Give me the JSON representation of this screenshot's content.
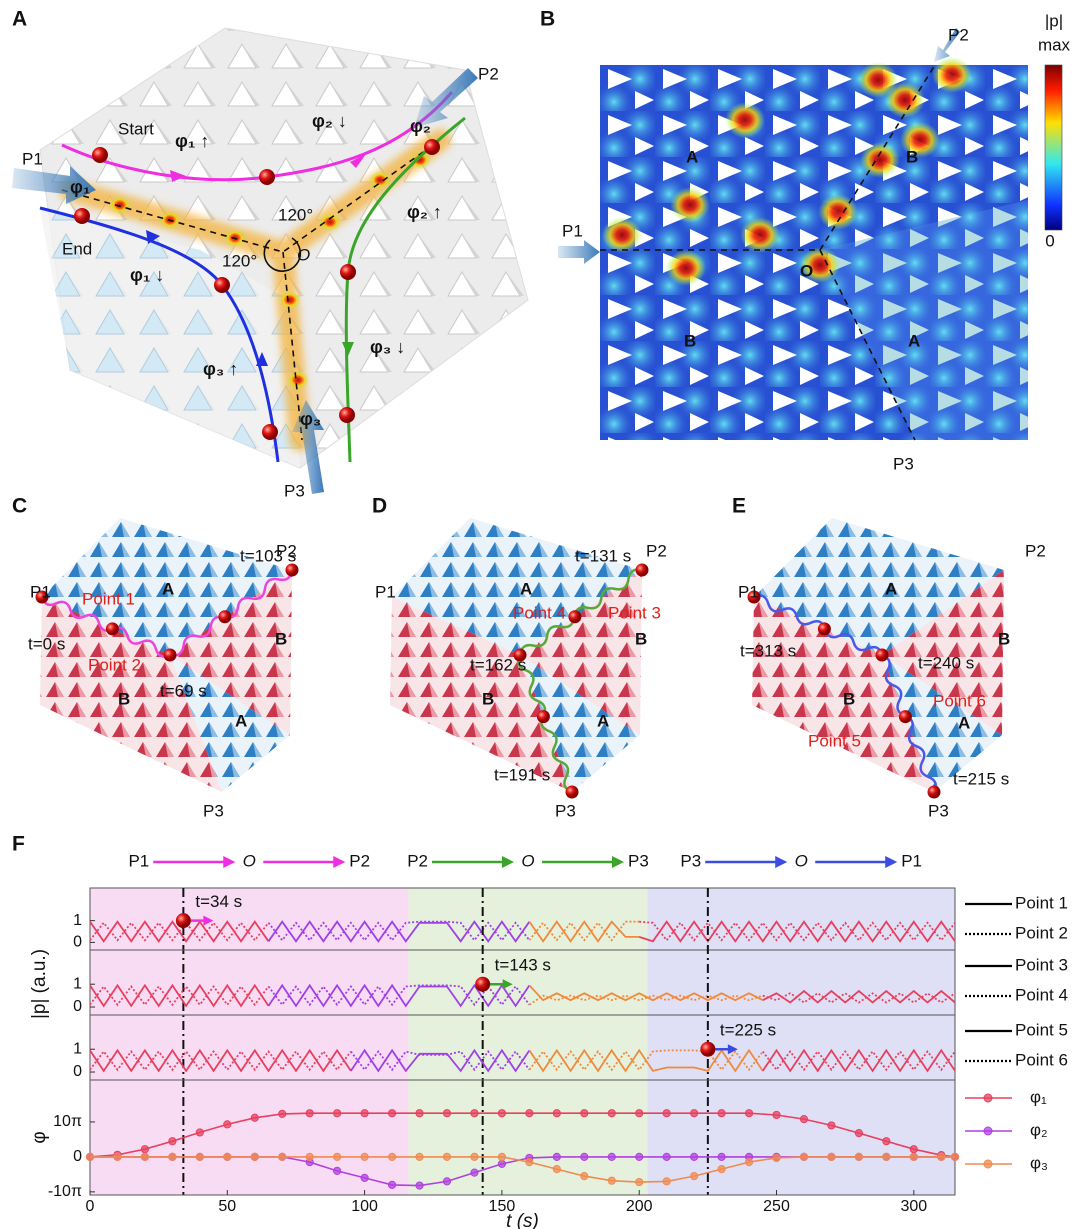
{
  "panels": [
    {
      "letter": "A",
      "labels": [
        "P1",
        "P2",
        "P3",
        "Start",
        "End",
        "120°",
        "120°",
        "O",
        "φ₁ ↑",
        "φ₂ ↓",
        "φ₂",
        "φ₁",
        "φ₂ ↑",
        "φ₁ ↓",
        "φ₃ ↑",
        "φ₃ ↓",
        "φ₃"
      ]
    },
    {
      "letter": "B",
      "labels": [
        "P1",
        "P2",
        "P3",
        "A",
        "B",
        "B",
        "A",
        "O"
      ],
      "colorbar": {
        "title": "|p|",
        "labels": [
          "max",
          "0"
        ]
      }
    },
    {
      "letter": "C",
      "labels": [
        "P1",
        "P2",
        "P3",
        "A",
        "B",
        "B",
        "A",
        "Point 1",
        "Point 2",
        "t=0 s",
        "t=69 s",
        "t=103 s"
      ]
    },
    {
      "letter": "D",
      "labels": [
        "P1",
        "P2",
        "P3",
        "A",
        "B",
        "B",
        "A",
        "Point 3",
        "Point 4",
        "t=131 s",
        "t=162 s",
        "t=191 s"
      ]
    },
    {
      "letter": "E",
      "labels": [
        "P1",
        "P2",
        "P3",
        "A",
        "B",
        "B",
        "A",
        "Point 5",
        "Point 6",
        "t=240 s",
        "t=215 s",
        "t=313 s"
      ]
    }
  ],
  "panel_f": {
    "letter": "F",
    "regions": [
      {
        "from": 0,
        "to": 116,
        "color": "#f8dcf4"
      },
      {
        "from": 116,
        "to": 203,
        "color": "#e5f1dc"
      },
      {
        "from": 203,
        "to": 315,
        "color": "#dfe0f6"
      }
    ],
    "routes": [
      {
        "labels": [
          "P1",
          "O",
          "P2"
        ],
        "color": "#ee2ee0"
      },
      {
        "labels": [
          "P2",
          "O",
          "P3"
        ],
        "color": "#3aa52a"
      },
      {
        "labels": [
          "P3",
          "O",
          "P1"
        ],
        "color": "#3b4de0"
      }
    ]
  },
  "chart_data": [
    {
      "type": "line",
      "xlim": [
        0,
        315
      ],
      "ylim": [
        -0.35,
        2.5
      ],
      "yticks": [
        0,
        1
      ],
      "segment_breaks": [
        68,
        163,
        205
      ],
      "segment_colors": [
        "#e8405e",
        "#a040e8",
        "#f08a3c",
        "#e8405e"
      ],
      "marker": {
        "t": 34,
        "value": 1,
        "label": "t=34 s",
        "color": "#ee2ee0"
      },
      "x": [
        0,
        5,
        10,
        15,
        20,
        25,
        30,
        35,
        40,
        45,
        50,
        55,
        60,
        65,
        70,
        75,
        80,
        85,
        90,
        95,
        100,
        105,
        110,
        115,
        120,
        125,
        130,
        135,
        140,
        145,
        150,
        155,
        160,
        165,
        170,
        175,
        180,
        185,
        190,
        195,
        200,
        205,
        210,
        215,
        220,
        225,
        230,
        235,
        240,
        245,
        250,
        255,
        260,
        265,
        270,
        275,
        280,
        285,
        290,
        295,
        300,
        305,
        310,
        315
      ],
      "series": [
        {
          "name": "Point 1",
          "color": "#000000",
          "dash": false,
          "values": [
            0.95,
            0.05,
            0.95,
            0.05,
            0.95,
            0.05,
            0.95,
            0.05,
            0.95,
            0.05,
            0.95,
            0.05,
            0.95,
            0.05,
            0.95,
            0.05,
            0.95,
            0.05,
            0.95,
            0.05,
            0.95,
            0.05,
            0.95,
            0.05,
            0.9,
            0.9,
            0.9,
            0.05,
            0.95,
            0.05,
            0.95,
            0.05,
            0.95,
            0.05,
            0.95,
            0.05,
            0.95,
            0.05,
            0.95,
            0.25,
            0.25,
            0.05,
            0.95,
            0.05,
            0.95,
            0.05,
            0.95,
            0.05,
            0.95,
            0.05,
            0.95,
            0.05,
            0.95,
            0.05,
            0.95,
            0.05,
            0.95,
            0.05,
            0.95,
            0.05,
            0.95,
            0.05,
            0.95,
            0.05
          ]
        },
        {
          "name": "Point 2",
          "color": "#000000",
          "dash": true,
          "values": [
            0.1,
            0.9,
            0.1,
            0.9,
            0.1,
            0.9,
            0.1,
            0.9,
            0.1,
            0.9,
            0.1,
            0.9,
            0.1,
            0.9,
            0.1,
            0.9,
            0.1,
            0.9,
            0.1,
            0.9,
            0.1,
            0.9,
            0.1,
            0.9,
            0.95,
            0.95,
            0.95,
            0.9,
            0.1,
            0.9,
            0.1,
            0.9,
            0.1,
            0.9,
            0.1,
            0.9,
            0.1,
            0.9,
            0.1,
            0.95,
            0.95,
            0.9,
            0.1,
            0.9,
            0.1,
            0.9,
            0.1,
            0.9,
            0.1,
            0.9,
            0.1,
            0.9,
            0.1,
            0.9,
            0.1,
            0.9,
            0.1,
            0.9,
            0.1,
            0.9,
            0.1,
            0.9,
            0.1,
            0.9
          ]
        }
      ]
    },
    {
      "type": "line",
      "xlim": [
        0,
        315
      ],
      "ylim": [
        -0.35,
        2.5
      ],
      "yticks": [
        0,
        1
      ],
      "ylabel": "|p| (a.u.)",
      "segment_breaks": [
        68,
        163,
        250
      ],
      "segment_colors": [
        "#e8405e",
        "#a040e8",
        "#f08a3c",
        "#e8405e"
      ],
      "marker": {
        "t": 143,
        "value": 1,
        "label": "t=143 s",
        "color": "#3aa52a"
      },
      "x": [
        0,
        5,
        10,
        15,
        20,
        25,
        30,
        35,
        40,
        45,
        50,
        55,
        60,
        65,
        70,
        75,
        80,
        85,
        90,
        95,
        100,
        105,
        110,
        115,
        120,
        125,
        130,
        135,
        140,
        145,
        150,
        155,
        160,
        165,
        170,
        175,
        180,
        185,
        190,
        195,
        200,
        205,
        210,
        215,
        220,
        225,
        230,
        235,
        240,
        245,
        250,
        255,
        260,
        265,
        270,
        275,
        280,
        285,
        290,
        295,
        300,
        305,
        310,
        315
      ],
      "series": [
        {
          "name": "Point 3",
          "color": "#000000",
          "dash": false,
          "values": [
            0.95,
            0.05,
            0.95,
            0.05,
            0.95,
            0.05,
            0.95,
            0.05,
            0.95,
            0.05,
            0.95,
            0.05,
            0.95,
            0.05,
            0.95,
            0.05,
            0.95,
            0.05,
            0.95,
            0.05,
            0.95,
            0.05,
            0.95,
            0.05,
            0.9,
            0.9,
            0.9,
            0.05,
            0.95,
            0.05,
            0.95,
            0.05,
            0.95,
            0.3,
            0.6,
            0.3,
            0.6,
            0.3,
            0.6,
            0.3,
            0.6,
            0.3,
            0.6,
            0.3,
            0.6,
            0.3,
            0.6,
            0.3,
            0.6,
            0.3,
            0.6,
            0.2,
            0.7,
            0.2,
            0.7,
            0.2,
            0.7,
            0.2,
            0.7,
            0.2,
            0.7,
            0.2,
            0.7,
            0.2
          ]
        },
        {
          "name": "Point 4",
          "color": "#000000",
          "dash": true,
          "values": [
            0.1,
            0.9,
            0.1,
            0.9,
            0.1,
            0.9,
            0.1,
            0.9,
            0.1,
            0.9,
            0.1,
            0.9,
            0.1,
            0.9,
            0.1,
            0.9,
            0.1,
            0.9,
            0.1,
            0.9,
            0.1,
            0.9,
            0.1,
            0.9,
            0.95,
            0.95,
            0.95,
            0.9,
            0.1,
            0.9,
            0.1,
            0.9,
            0.1,
            0.5,
            0.3,
            0.5,
            0.3,
            0.5,
            0.3,
            0.5,
            0.3,
            0.5,
            0.3,
            0.5,
            0.3,
            0.5,
            0.3,
            0.5,
            0.3,
            0.5,
            0.3,
            0.6,
            0.2,
            0.6,
            0.2,
            0.6,
            0.2,
            0.6,
            0.2,
            0.6,
            0.2,
            0.6,
            0.2,
            0.6
          ]
        }
      ]
    },
    {
      "type": "line",
      "xlim": [
        0,
        315
      ],
      "ylim": [
        -0.35,
        2.5
      ],
      "yticks": [
        0,
        1
      ],
      "segment_breaks": [
        100,
        163,
        250
      ],
      "segment_colors": [
        "#e8405e",
        "#a040e8",
        "#f08a3c",
        "#e8405e"
      ],
      "marker": {
        "t": 225,
        "value": 1,
        "label": "t=225 s",
        "color": "#3b4de0"
      },
      "x": [
        0,
        5,
        10,
        15,
        20,
        25,
        30,
        35,
        40,
        45,
        50,
        55,
        60,
        65,
        70,
        75,
        80,
        85,
        90,
        95,
        100,
        105,
        110,
        115,
        120,
        125,
        130,
        135,
        140,
        145,
        150,
        155,
        160,
        165,
        170,
        175,
        180,
        185,
        190,
        195,
        200,
        205,
        210,
        215,
        220,
        225,
        230,
        235,
        240,
        245,
        250,
        255,
        260,
        265,
        270,
        275,
        280,
        285,
        290,
        295,
        300,
        305,
        310,
        315
      ],
      "series": [
        {
          "name": "Point 5",
          "color": "#000000",
          "dash": false,
          "values": [
            0.95,
            0.05,
            0.95,
            0.05,
            0.95,
            0.05,
            0.95,
            0.05,
            0.95,
            0.05,
            0.95,
            0.05,
            0.95,
            0.05,
            0.95,
            0.05,
            0.95,
            0.05,
            0.95,
            0.05,
            0.95,
            0.05,
            0.95,
            0.05,
            0.8,
            0.8,
            0.8,
            0.05,
            0.95,
            0.05,
            0.95,
            0.05,
            0.95,
            0.05,
            0.95,
            0.05,
            0.95,
            0.05,
            0.95,
            0.05,
            0.95,
            0.05,
            0.2,
            0.2,
            0.2,
            0.05,
            0.95,
            0.05,
            0.95,
            0.05,
            0.95,
            0.05,
            0.95,
            0.05,
            0.95,
            0.05,
            0.95,
            0.05,
            0.95,
            0.05,
            0.95,
            0.05,
            0.95,
            0.05
          ]
        },
        {
          "name": "Point 6",
          "color": "#000000",
          "dash": true,
          "values": [
            0.1,
            0.9,
            0.1,
            0.9,
            0.1,
            0.9,
            0.1,
            0.9,
            0.1,
            0.9,
            0.1,
            0.9,
            0.1,
            0.9,
            0.1,
            0.9,
            0.1,
            0.9,
            0.1,
            0.9,
            0.1,
            0.9,
            0.1,
            0.9,
            0.75,
            0.75,
            0.75,
            0.9,
            0.1,
            0.9,
            0.1,
            0.9,
            0.1,
            0.9,
            0.1,
            0.9,
            0.1,
            0.9,
            0.1,
            0.9,
            0.1,
            0.9,
            0.95,
            0.95,
            0.95,
            0.9,
            0.1,
            0.9,
            0.1,
            0.9,
            0.1,
            0.9,
            0.1,
            0.9,
            0.1,
            0.9,
            0.1,
            0.9,
            0.1,
            0.9,
            0.1,
            0.9,
            0.1,
            0.9
          ]
        }
      ]
    },
    {
      "type": "line",
      "point_markers": true,
      "xlim": [
        0,
        315
      ],
      "ylim": [
        -10.9,
        22
      ],
      "yticks": [
        {
          "value": 10,
          "label": "10π"
        },
        0,
        {
          "value": -10,
          "label": "-10π"
        }
      ],
      "xticks": [
        0,
        50,
        100,
        150,
        200,
        250,
        300
      ],
      "ylabel": "φ",
      "xlabel": "t (s)",
      "x": [
        0,
        10,
        20,
        30,
        40,
        50,
        60,
        70,
        80,
        90,
        100,
        110,
        120,
        130,
        140,
        150,
        160,
        170,
        180,
        190,
        200,
        210,
        220,
        230,
        240,
        250,
        260,
        270,
        280,
        290,
        300,
        310,
        315
      ],
      "series": [
        {
          "name": "φ₁",
          "color": "#e8405e",
          "values": [
            0,
            0.6,
            2.2,
            4.5,
            7,
            9.3,
            11.2,
            12.3,
            12.5,
            12.5,
            12.5,
            12.5,
            12.5,
            12.5,
            12.5,
            12.5,
            12.5,
            12.5,
            12.5,
            12.5,
            12.5,
            12.5,
            12.5,
            12.5,
            12.5,
            12,
            10.8,
            9,
            6.8,
            4.5,
            2.2,
            0.5,
            0
          ]
        },
        {
          "name": "φ₂",
          "color": "#b040e0",
          "values": [
            0,
            0,
            0,
            0,
            0,
            0,
            0,
            0,
            -1.5,
            -4,
            -6,
            -8,
            -8.2,
            -7,
            -4.5,
            -2,
            -0.3,
            0,
            0,
            0,
            0,
            0,
            0,
            0,
            0,
            0,
            0,
            0,
            0,
            0,
            0,
            0,
            0
          ]
        },
        {
          "name": "φ₃",
          "color": "#f08a50",
          "values": [
            0,
            0,
            0,
            0,
            0,
            0,
            0,
            0,
            0,
            0,
            0,
            0,
            0,
            0,
            0,
            0,
            -1.5,
            -3.5,
            -5.5,
            -6.8,
            -7.2,
            -7,
            -5.5,
            -3.5,
            -1.5,
            -0.3,
            0,
            0,
            0,
            0,
            0,
            0,
            0
          ]
        }
      ]
    }
  ]
}
